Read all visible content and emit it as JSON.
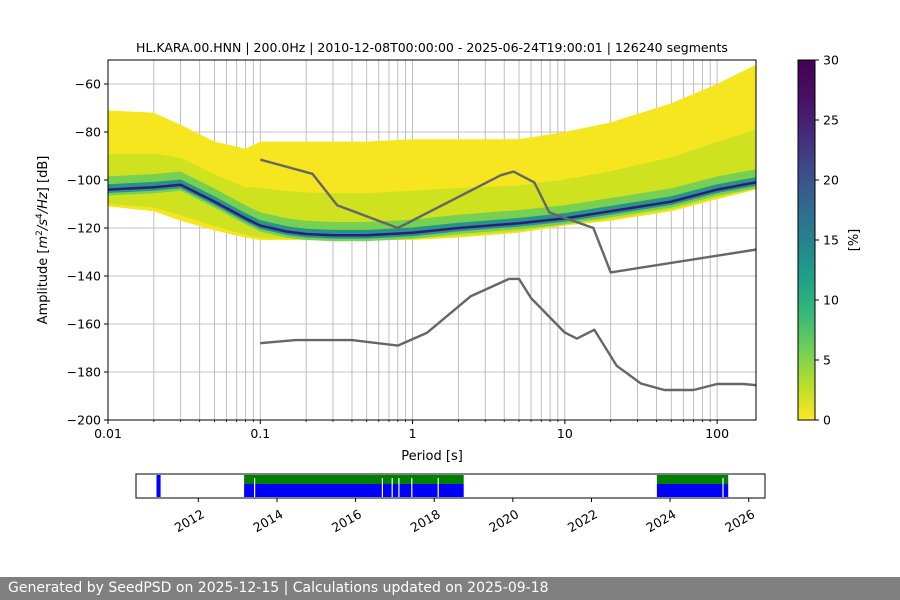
{
  "footer": {
    "text": "Generated by SeedPSD on 2025-12-15 | Calculations updated on 2025-09-18"
  },
  "chart_data": [
    {
      "type": "heatmap",
      "title": "HL.KARA.00.HNN | 200.0Hz | 2010-12-08T00:00:00 - 2025-06-24T19:00:01 | 126240 segments",
      "xlabel": "Period [s]",
      "ylabel_parts": [
        "Amplitude [",
        "m",
        "2",
        "/",
        "s",
        "4",
        "/",
        "Hz",
        "] [dB]"
      ],
      "xscale": "log",
      "xlim": [
        0.01,
        180
      ],
      "ylim": [
        -200,
        -50
      ],
      "xticks": [
        {
          "value": 0.01,
          "label": "0.01"
        },
        {
          "value": 0.1,
          "label": "0.1"
        },
        {
          "value": 1,
          "label": "1"
        },
        {
          "value": 10,
          "label": "10"
        },
        {
          "value": 100,
          "label": "100"
        }
      ],
      "yticks": [
        {
          "value": -60,
          "label": "−60"
        },
        {
          "value": -80,
          "label": "−80"
        },
        {
          "value": -100,
          "label": "−100"
        },
        {
          "value": -120,
          "label": "−120"
        },
        {
          "value": -140,
          "label": "−140"
        },
        {
          "value": -160,
          "label": "−160"
        },
        {
          "value": -180,
          "label": "−180"
        },
        {
          "value": -200,
          "label": "−200"
        }
      ],
      "grid": true,
      "colormap": "viridis_r",
      "colorbar": {
        "label": "[%]",
        "range": [
          0,
          30
        ],
        "ticks": [
          {
            "value": 0,
            "label": "0"
          },
          {
            "value": 5,
            "label": "5"
          },
          {
            "value": 10,
            "label": "10"
          },
          {
            "value": 15,
            "label": "15"
          },
          {
            "value": 20,
            "label": "20"
          },
          {
            "value": 25,
            "label": "25"
          },
          {
            "value": 30,
            "label": "30"
          }
        ]
      },
      "density_band": {
        "period": [
          0.01,
          0.02,
          0.03,
          0.05,
          0.08,
          0.1,
          0.15,
          0.2,
          0.3,
          0.5,
          1,
          2,
          5,
          10,
          20,
          50,
          100,
          180
        ],
        "mode_db": [
          -104,
          -103,
          -102,
          -109,
          -116,
          -119,
          -121.5,
          -122.5,
          -123,
          -123,
          -122,
          -120,
          -118,
          -116,
          -113,
          -109,
          -104,
          -101
        ],
        "lower_db": [
          -111,
          -113,
          -117,
          -121,
          -124,
          -125,
          -125,
          -125,
          -125,
          -125,
          -125,
          -124,
          -122,
          -119,
          -117,
          -113,
          -108,
          -104
        ],
        "upper_db": [
          -71,
          -72,
          -77,
          -84,
          -87,
          -84,
          -84,
          -84,
          -84,
          -84,
          -83,
          -83,
          -83,
          -80,
          -76,
          -68,
          -60,
          -52
        ]
      },
      "series": [
        {
          "x": [
            0.1,
            0.22,
            0.32,
            0.8,
            3.8,
            4.6,
            6.3,
            7.9,
            15.4,
            20,
            180
          ],
          "y": [
            -91.5,
            -97.4,
            -110.5,
            -120,
            -98,
            -96.5,
            -101,
            -113.5,
            -120,
            -138.5,
            -129
          ],
          "color": "#666666"
        },
        {
          "x": [
            0.1,
            0.17,
            0.4,
            0.8,
            1.24,
            2.4,
            4.3,
            5.0,
            6.0,
            10,
            12,
            15.6,
            21.9,
            31.6,
            45,
            70,
            100,
            150,
            180
          ],
          "y": [
            -168,
            -166.7,
            -166.7,
            -169,
            -163.7,
            -148.5,
            -141.2,
            -141.2,
            -149.2,
            -163.6,
            -166.1,
            -162.4,
            -177.4,
            -184.8,
            -187.5,
            -187.5,
            -185,
            -185,
            -185.5
          ]
        }
      ]
    },
    {
      "type": "timeline",
      "xlim": [
        "2010-06-01",
        "2026-06-01"
      ],
      "xticks": [
        {
          "value": "2012-01-01",
          "label": "2012"
        },
        {
          "value": "2014-01-01",
          "label": "2014"
        },
        {
          "value": "2016-01-01",
          "label": "2016"
        },
        {
          "value": "2018-01-01",
          "label": "2018"
        },
        {
          "value": "2020-01-01",
          "label": "2020"
        },
        {
          "value": "2022-01-01",
          "label": "2022"
        },
        {
          "value": "2024-01-01",
          "label": "2024"
        },
        {
          "value": "2026-01-01",
          "label": "2026"
        }
      ],
      "bars": [
        {
          "start": "2010-12-08",
          "end": "2011-01-15",
          "color": "#0000ff",
          "row": "full"
        },
        {
          "start": "2013-03-01",
          "end": "2018-10-01",
          "color": "#008000",
          "row": "top"
        },
        {
          "start": "2013-03-01",
          "end": "2018-10-01",
          "color": "#0000ff",
          "row": "bottom"
        },
        {
          "start": "2023-09-01",
          "end": "2025-06-24",
          "color": "#008000",
          "row": "top"
        },
        {
          "start": "2023-09-01",
          "end": "2025-06-24",
          "color": "#0000ff",
          "row": "bottom"
        }
      ],
      "gaps": [
        "2013-06-01",
        "2016-09-01",
        "2016-12-01",
        "2017-02-01",
        "2017-06-01",
        "2018-02-01",
        "2025-05-01"
      ]
    }
  ]
}
